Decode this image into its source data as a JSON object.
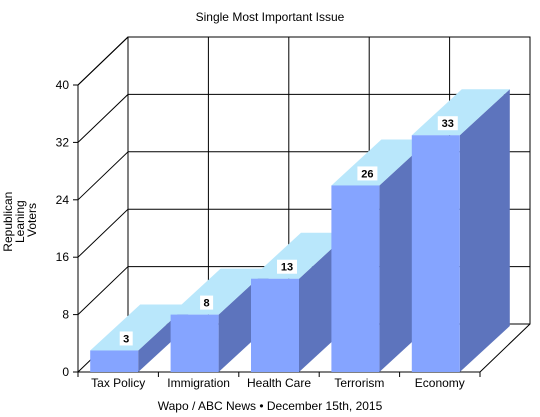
{
  "chart_data": {
    "type": "bar",
    "title": "Single Most Important Issue",
    "ylabel_lines": [
      "Republican",
      "Leaning",
      "Voters"
    ],
    "source": "Wapo / ABC News • December 15th, 2015",
    "categories": [
      "Tax Policy",
      "Immigration",
      "Health Care",
      "Terrorism",
      "Economy"
    ],
    "values": [
      3,
      8,
      13,
      26,
      33
    ],
    "ylim": [
      0,
      40
    ],
    "yticks": [
      0,
      8,
      16,
      24,
      32,
      40
    ],
    "grid": true,
    "three_d": true,
    "colors": {
      "front": "#85a4ff",
      "side": "#5d74bd",
      "top": "#b9e7fb",
      "grid": "#000000",
      "label_bg": "#ffffff"
    }
  }
}
